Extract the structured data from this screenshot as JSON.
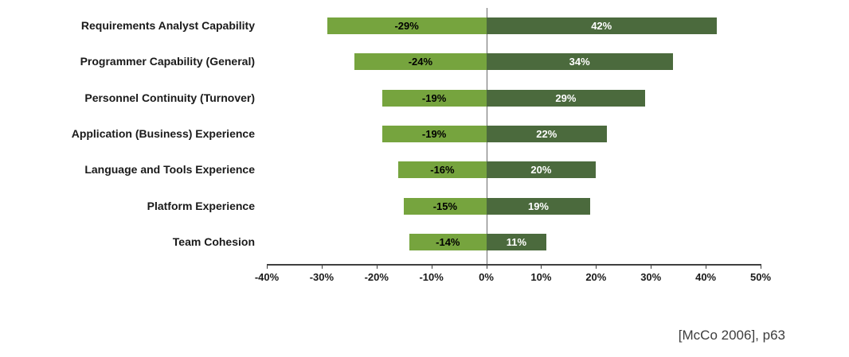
{
  "chart_data": {
    "type": "bar",
    "orientation": "horizontal-diverging",
    "categories": [
      "Requirements Analyst Capability",
      "Programmer Capability (General)",
      "Personnel Continuity (Turnover)",
      "Application (Business) Experience",
      "Language and Tools Experience",
      "Platform Experience",
      "Team Cohesion"
    ],
    "series": [
      {
        "name": "decrease",
        "values": [
          -29,
          -24,
          -19,
          -19,
          -16,
          -15,
          -14
        ],
        "color": "#76a43e",
        "label_color": "#000000"
      },
      {
        "name": "increase",
        "values": [
          42,
          34,
          29,
          22,
          20,
          19,
          11
        ],
        "color": "#4b6a3d",
        "label_color": "#ffffff"
      }
    ],
    "xlim": [
      -40,
      50
    ],
    "x_tick_values": [
      -40,
      -30,
      -20,
      -10,
      0,
      10,
      20,
      30,
      40,
      50
    ],
    "x_tick_labels": [
      "-40%",
      "-30%",
      "-20%",
      "-10%",
      "0%",
      "10%",
      "20%",
      "30%",
      "40%",
      "50%"
    ],
    "grid": false,
    "legend": "none",
    "title": ""
  },
  "caption": "[McCo 2006], p63"
}
